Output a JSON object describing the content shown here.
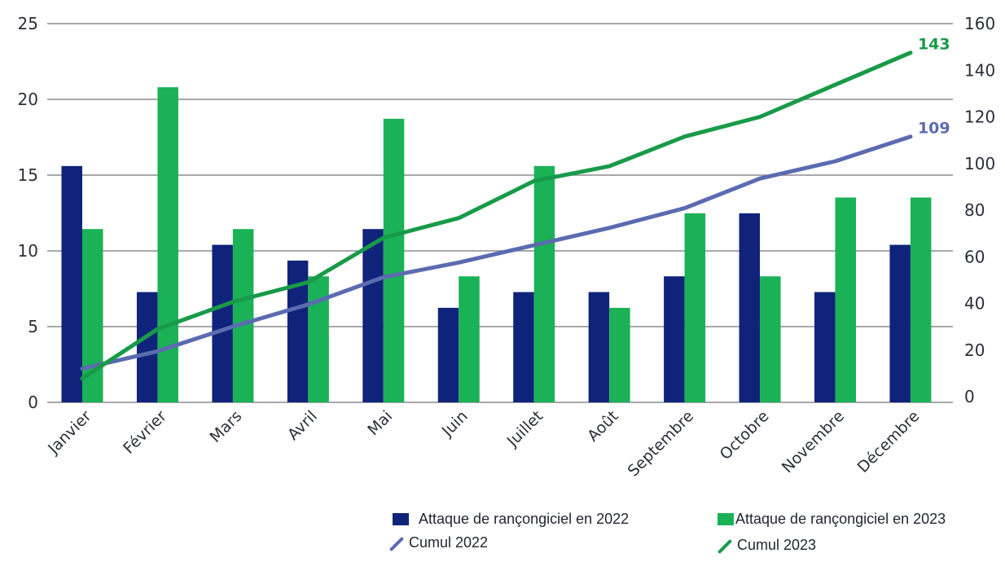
{
  "chart_data": {
    "type": "bar",
    "title": "",
    "xlabel": "",
    "ylabel": "",
    "categories": [
      "Janvier",
      "Février",
      "Mars",
      "Avril",
      "Mai",
      "Juin",
      "Juillet",
      "Août",
      "Septembre",
      "Octobre",
      "Novembre",
      "Décembre"
    ],
    "series": [
      {
        "name": "Attaque de rançongiciel en 2022",
        "type": "bar",
        "axis": "left",
        "color": "#10237a",
        "values": [
          15,
          7,
          10,
          9,
          11,
          6,
          7,
          7,
          8,
          12,
          7,
          10
        ]
      },
      {
        "name": "Attaque de rançongiciel en 2023",
        "type": "bar",
        "axis": "left",
        "color": "#1bb157",
        "values": [
          11,
          20,
          11,
          8,
          18,
          8,
          15,
          6,
          12,
          8,
          13,
          13
        ]
      },
      {
        "name": "Cumul 2022",
        "type": "line",
        "axis": "right",
        "color": "#5b6bb0",
        "values": [
          15,
          22,
          32,
          41,
          52,
          58,
          65,
          72,
          80,
          92,
          99,
          109
        ],
        "end_label": "109"
      },
      {
        "name": "Cumul 2023",
        "type": "line",
        "axis": "right",
        "color": "#189a48",
        "values": [
          11,
          31,
          42,
          50,
          68,
          76,
          91,
          97,
          109,
          117,
          130,
          143
        ],
        "end_label": "143"
      }
    ],
    "y_left": {
      "ylim": [
        0,
        25
      ],
      "ticks": [
        "0",
        "5",
        "10",
        "15",
        "20",
        "25"
      ]
    },
    "y_right": {
      "ylim": [
        0,
        160
      ],
      "ticks": [
        "0",
        "20",
        "40",
        "60",
        "80",
        "100",
        "120",
        "140",
        "160"
      ]
    },
    "grid": true,
    "legend_position": "bottom-right"
  },
  "legend": {
    "bar2022": "Attaque de rançongiciel en 2022",
    "bar2023": "Attaque de rançongiciel en 2023",
    "cumul2022": "Cumul 2022",
    "cumul2023": "Cumul 2023"
  },
  "colors": {
    "bar2022": "#10237a",
    "bar2023": "#1bb157",
    "cumul2022": "#5b6bb0",
    "cumul2023": "#189a48",
    "grid": "#8c8c91"
  }
}
